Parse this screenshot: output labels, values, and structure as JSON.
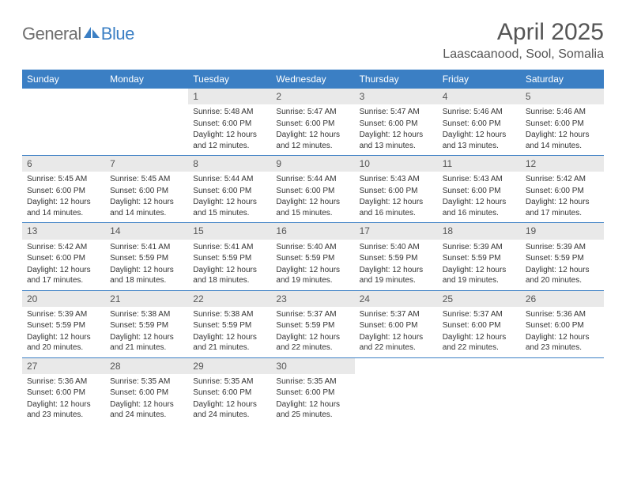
{
  "logo": {
    "part1": "General",
    "part2": "Blue"
  },
  "title": "April 2025",
  "location": "Laascaanood, Sool, Somalia",
  "colors": {
    "header_bg": "#3b7fc4",
    "header_text": "#ffffff",
    "daynum_bg": "#e9e9e9",
    "text": "#333333",
    "logo_gray": "#6e6e6e",
    "logo_blue": "#3b7fc4",
    "row_border": "#3b7fc4",
    "background": "#ffffff"
  },
  "typography": {
    "title_fontsize": 30,
    "location_fontsize": 16,
    "weekday_fontsize": 12,
    "daynum_fontsize": 12,
    "body_fontsize": 10,
    "font_family": "Arial"
  },
  "weekdays": [
    "Sunday",
    "Monday",
    "Tuesday",
    "Wednesday",
    "Thursday",
    "Friday",
    "Saturday"
  ],
  "weeks": [
    [
      null,
      null,
      {
        "n": "1",
        "sunrise": "Sunrise: 5:48 AM",
        "sunset": "Sunset: 6:00 PM",
        "daylight": "Daylight: 12 hours and 12 minutes."
      },
      {
        "n": "2",
        "sunrise": "Sunrise: 5:47 AM",
        "sunset": "Sunset: 6:00 PM",
        "daylight": "Daylight: 12 hours and 12 minutes."
      },
      {
        "n": "3",
        "sunrise": "Sunrise: 5:47 AM",
        "sunset": "Sunset: 6:00 PM",
        "daylight": "Daylight: 12 hours and 13 minutes."
      },
      {
        "n": "4",
        "sunrise": "Sunrise: 5:46 AM",
        "sunset": "Sunset: 6:00 PM",
        "daylight": "Daylight: 12 hours and 13 minutes."
      },
      {
        "n": "5",
        "sunrise": "Sunrise: 5:46 AM",
        "sunset": "Sunset: 6:00 PM",
        "daylight": "Daylight: 12 hours and 14 minutes."
      }
    ],
    [
      {
        "n": "6",
        "sunrise": "Sunrise: 5:45 AM",
        "sunset": "Sunset: 6:00 PM",
        "daylight": "Daylight: 12 hours and 14 minutes."
      },
      {
        "n": "7",
        "sunrise": "Sunrise: 5:45 AM",
        "sunset": "Sunset: 6:00 PM",
        "daylight": "Daylight: 12 hours and 14 minutes."
      },
      {
        "n": "8",
        "sunrise": "Sunrise: 5:44 AM",
        "sunset": "Sunset: 6:00 PM",
        "daylight": "Daylight: 12 hours and 15 minutes."
      },
      {
        "n": "9",
        "sunrise": "Sunrise: 5:44 AM",
        "sunset": "Sunset: 6:00 PM",
        "daylight": "Daylight: 12 hours and 15 minutes."
      },
      {
        "n": "10",
        "sunrise": "Sunrise: 5:43 AM",
        "sunset": "Sunset: 6:00 PM",
        "daylight": "Daylight: 12 hours and 16 minutes."
      },
      {
        "n": "11",
        "sunrise": "Sunrise: 5:43 AM",
        "sunset": "Sunset: 6:00 PM",
        "daylight": "Daylight: 12 hours and 16 minutes."
      },
      {
        "n": "12",
        "sunrise": "Sunrise: 5:42 AM",
        "sunset": "Sunset: 6:00 PM",
        "daylight": "Daylight: 12 hours and 17 minutes."
      }
    ],
    [
      {
        "n": "13",
        "sunrise": "Sunrise: 5:42 AM",
        "sunset": "Sunset: 6:00 PM",
        "daylight": "Daylight: 12 hours and 17 minutes."
      },
      {
        "n": "14",
        "sunrise": "Sunrise: 5:41 AM",
        "sunset": "Sunset: 5:59 PM",
        "daylight": "Daylight: 12 hours and 18 minutes."
      },
      {
        "n": "15",
        "sunrise": "Sunrise: 5:41 AM",
        "sunset": "Sunset: 5:59 PM",
        "daylight": "Daylight: 12 hours and 18 minutes."
      },
      {
        "n": "16",
        "sunrise": "Sunrise: 5:40 AM",
        "sunset": "Sunset: 5:59 PM",
        "daylight": "Daylight: 12 hours and 19 minutes."
      },
      {
        "n": "17",
        "sunrise": "Sunrise: 5:40 AM",
        "sunset": "Sunset: 5:59 PM",
        "daylight": "Daylight: 12 hours and 19 minutes."
      },
      {
        "n": "18",
        "sunrise": "Sunrise: 5:39 AM",
        "sunset": "Sunset: 5:59 PM",
        "daylight": "Daylight: 12 hours and 19 minutes."
      },
      {
        "n": "19",
        "sunrise": "Sunrise: 5:39 AM",
        "sunset": "Sunset: 5:59 PM",
        "daylight": "Daylight: 12 hours and 20 minutes."
      }
    ],
    [
      {
        "n": "20",
        "sunrise": "Sunrise: 5:39 AM",
        "sunset": "Sunset: 5:59 PM",
        "daylight": "Daylight: 12 hours and 20 minutes."
      },
      {
        "n": "21",
        "sunrise": "Sunrise: 5:38 AM",
        "sunset": "Sunset: 5:59 PM",
        "daylight": "Daylight: 12 hours and 21 minutes."
      },
      {
        "n": "22",
        "sunrise": "Sunrise: 5:38 AM",
        "sunset": "Sunset: 5:59 PM",
        "daylight": "Daylight: 12 hours and 21 minutes."
      },
      {
        "n": "23",
        "sunrise": "Sunrise: 5:37 AM",
        "sunset": "Sunset: 5:59 PM",
        "daylight": "Daylight: 12 hours and 22 minutes."
      },
      {
        "n": "24",
        "sunrise": "Sunrise: 5:37 AM",
        "sunset": "Sunset: 6:00 PM",
        "daylight": "Daylight: 12 hours and 22 minutes."
      },
      {
        "n": "25",
        "sunrise": "Sunrise: 5:37 AM",
        "sunset": "Sunset: 6:00 PM",
        "daylight": "Daylight: 12 hours and 22 minutes."
      },
      {
        "n": "26",
        "sunrise": "Sunrise: 5:36 AM",
        "sunset": "Sunset: 6:00 PM",
        "daylight": "Daylight: 12 hours and 23 minutes."
      }
    ],
    [
      {
        "n": "27",
        "sunrise": "Sunrise: 5:36 AM",
        "sunset": "Sunset: 6:00 PM",
        "daylight": "Daylight: 12 hours and 23 minutes."
      },
      {
        "n": "28",
        "sunrise": "Sunrise: 5:35 AM",
        "sunset": "Sunset: 6:00 PM",
        "daylight": "Daylight: 12 hours and 24 minutes."
      },
      {
        "n": "29",
        "sunrise": "Sunrise: 5:35 AM",
        "sunset": "Sunset: 6:00 PM",
        "daylight": "Daylight: 12 hours and 24 minutes."
      },
      {
        "n": "30",
        "sunrise": "Sunrise: 5:35 AM",
        "sunset": "Sunset: 6:00 PM",
        "daylight": "Daylight: 12 hours and 25 minutes."
      },
      null,
      null,
      null
    ]
  ]
}
